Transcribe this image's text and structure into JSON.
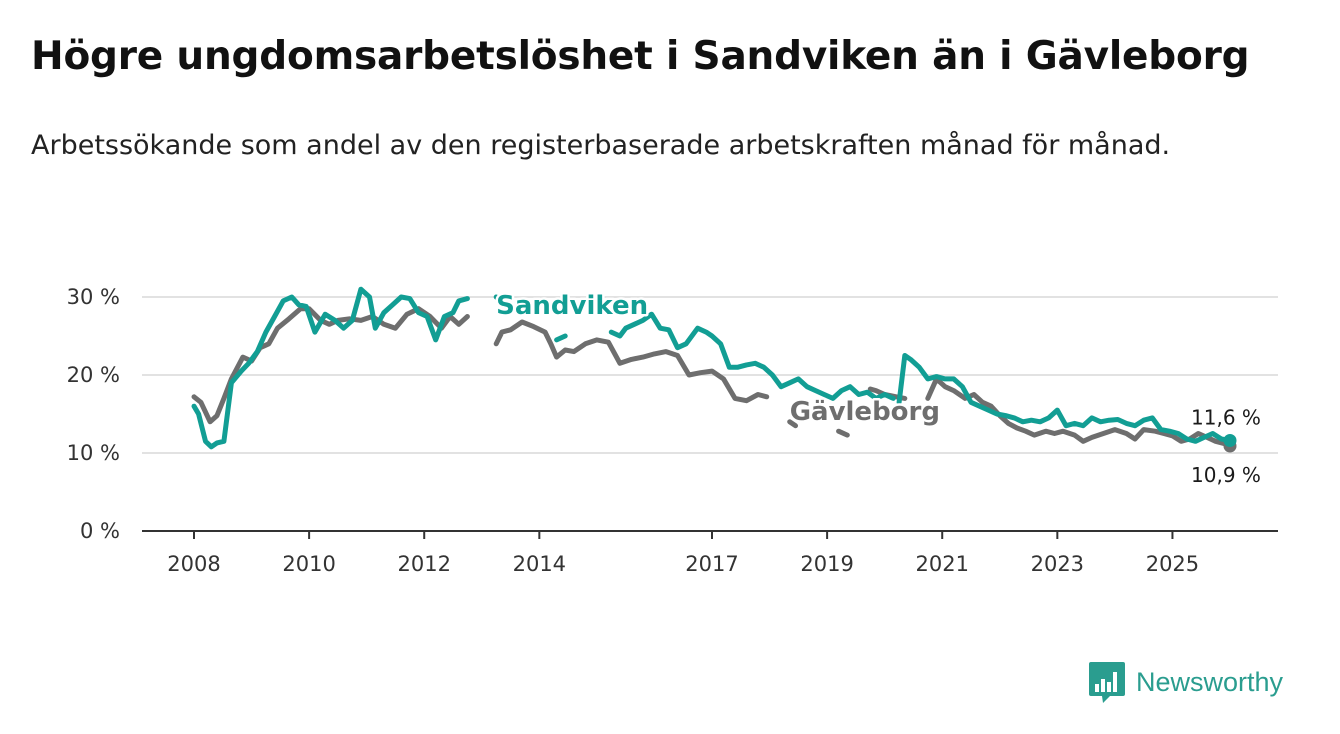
{
  "title": "Högre ungdomsarbetslöshet i Sandviken än i Gävleborg",
  "subtitle": "Arbetssökande som andel av den registerbaserade arbetskraften månad för månad.",
  "brand": {
    "name": "Newsworthy",
    "color": "#2a9d8f"
  },
  "chart_data": {
    "type": "line",
    "title": "Högre ungdomsarbetslöshet i Sandviken än i Gävleborg",
    "xlabel": "",
    "ylabel": "",
    "xlim": [
      2008,
      2026
    ],
    "ylim": [
      0,
      30
    ],
    "y_ticks": [
      0,
      10,
      20,
      30
    ],
    "y_tick_labels": [
      "0 %",
      "10 %",
      "20 %",
      "30 %"
    ],
    "x_ticks": [
      2008,
      2010,
      2012,
      2014,
      2017,
      2019,
      2021,
      2023,
      2025
    ],
    "x_tick_labels": [
      "2008",
      "2010",
      "2012",
      "2014",
      "2017",
      "2019",
      "2021",
      "2023",
      "2025"
    ],
    "grid": true,
    "series": [
      {
        "name": "Gävleborg",
        "color": "#6e6e6e",
        "end_label": "10,9 %",
        "x": [
          2008.0,
          2008.12,
          2008.28,
          2008.4,
          2008.52,
          2008.65,
          2008.85,
          2009.0,
          2009.15,
          2009.3,
          2009.45,
          2009.65,
          2009.85,
          2010.0,
          2010.2,
          2010.35,
          2010.5,
          2010.7,
          2010.9,
          2011.1,
          2011.3,
          2011.5,
          2011.7,
          2011.9,
          2012.1,
          2012.3,
          2012.45,
          2012.6,
          2012.75,
          null,
          2013.25,
          2013.35,
          2013.5,
          2013.7,
          2013.9,
          2014.1,
          2014.2,
          2014.3,
          2014.45,
          2014.6,
          2014.8,
          2015.0,
          2015.2,
          2015.4,
          2015.6,
          2015.8,
          2016.0,
          2016.2,
          2016.4,
          2016.6,
          2016.8,
          2017.0,
          2017.2,
          2017.4,
          2017.6,
          2017.8,
          2017.95,
          null,
          2018.35,
          2018.45,
          null,
          2019.2,
          2019.35,
          null,
          2019.75,
          2019.85,
          2020.0,
          2020.2,
          2020.35,
          null,
          2020.75,
          2020.9,
          2021.05,
          2021.2,
          2021.4,
          2021.55,
          2021.7,
          2021.85,
          2022.0,
          2022.15,
          2022.3,
          2022.45,
          2022.6,
          2022.8,
          2022.95,
          2023.1,
          2023.3,
          2023.45,
          2023.6,
          2023.8,
          2024.0,
          2024.2,
          2024.35,
          2024.5,
          2024.7,
          2024.85,
          2025.0,
          2025.15,
          2025.3,
          2025.45,
          2025.6,
          2025.75,
          2025.9,
          2026.0
        ],
        "y": [
          17.2,
          16.5,
          14.0,
          14.8,
          17.0,
          19.5,
          22.3,
          21.8,
          23.5,
          24.0,
          26.0,
          27.2,
          28.5,
          28.5,
          27.0,
          26.5,
          27.0,
          27.2,
          27.0,
          27.5,
          26.5,
          26.0,
          27.8,
          28.5,
          27.5,
          26.0,
          27.5,
          26.5,
          27.5,
          null,
          24.0,
          25.5,
          25.8,
          26.8,
          26.2,
          25.5,
          24.0,
          22.3,
          23.2,
          23.0,
          24.0,
          24.5,
          24.2,
          21.5,
          22.0,
          22.3,
          22.7,
          23.0,
          22.5,
          20.0,
          20.3,
          20.5,
          19.5,
          17.0,
          16.7,
          17.5,
          17.2,
          null,
          14.0,
          13.5,
          null,
          12.8,
          12.3,
          null,
          18.2,
          18.0,
          17.5,
          17.2,
          17.0,
          null,
          17.0,
          19.5,
          18.5,
          18.0,
          17.0,
          17.5,
          16.5,
          16.0,
          14.8,
          13.8,
          13.2,
          12.8,
          12.3,
          12.8,
          12.5,
          12.8,
          12.3,
          11.5,
          12.0,
          12.5,
          13.0,
          12.5,
          11.8,
          13.0,
          12.8,
          12.5,
          12.2,
          11.5,
          11.8,
          12.5,
          12.0,
          11.5,
          11.2,
          10.9
        ]
      },
      {
        "name": "Sandviken",
        "color": "#129e94",
        "end_label": "11,6 %",
        "x": [
          2008.0,
          2008.08,
          2008.2,
          2008.3,
          2008.4,
          2008.52,
          2008.65,
          2008.82,
          2008.95,
          2009.1,
          2009.25,
          2009.4,
          2009.55,
          2009.7,
          2009.82,
          2009.95,
          2010.1,
          2010.28,
          2010.45,
          2010.6,
          2010.75,
          2010.9,
          2011.05,
          2011.15,
          2011.3,
          2011.45,
          2011.6,
          2011.75,
          2011.9,
          2012.05,
          2012.2,
          2012.35,
          2012.5,
          2012.6,
          2012.75,
          null,
          2013.25,
          2013.35,
          null,
          2014.3,
          2014.45,
          null,
          2015.25,
          2015.4,
          2015.5,
          2015.65,
          2015.8,
          2015.95,
          2016.1,
          2016.25,
          2016.4,
          2016.55,
          2016.75,
          2016.9,
          2017.0,
          2017.15,
          2017.3,
          2017.45,
          2017.6,
          2017.75,
          2017.9,
          2018.05,
          2018.2,
          2018.35,
          2018.5,
          2018.65,
          2018.8,
          2018.95,
          2019.1,
          2019.25,
          2019.4,
          2019.55,
          2019.7,
          2019.85,
          2020.0,
          2020.15,
          null,
          2020.25,
          2020.35,
          2020.45,
          2020.6,
          2020.75,
          2020.9,
          2021.05,
          2021.2,
          2021.35,
          2021.5,
          2021.65,
          2021.8,
          2021.95,
          2022.1,
          2022.25,
          2022.4,
          2022.55,
          2022.7,
          2022.85,
          2023.0,
          2023.15,
          2023.3,
          2023.45,
          2023.6,
          2023.75,
          2023.9,
          2024.05,
          2024.2,
          2024.35,
          2024.5,
          2024.65,
          2024.8,
          2024.95,
          2025.1,
          2025.25,
          2025.4,
          2025.55,
          2025.7,
          2025.85,
          2026.0
        ],
        "y": [
          16.0,
          15.0,
          11.5,
          10.8,
          11.3,
          11.5,
          19.0,
          20.5,
          21.5,
          23.0,
          25.5,
          27.5,
          29.5,
          30.0,
          29.0,
          28.8,
          25.5,
          27.8,
          27.0,
          26.0,
          27.0,
          31.0,
          30.0,
          26.0,
          28.0,
          29.0,
          30.0,
          29.8,
          28.0,
          27.5,
          24.5,
          27.5,
          28.0,
          29.5,
          29.8,
          null,
          30.0,
          29.5,
          null,
          24.5,
          25.0,
          null,
          25.5,
          25.0,
          26.0,
          26.5,
          27.0,
          27.8,
          26.0,
          25.8,
          23.5,
          24.0,
          26.0,
          25.5,
          25.0,
          24.0,
          21.0,
          21.0,
          21.3,
          21.5,
          21.0,
          20.0,
          18.5,
          19.0,
          19.5,
          18.5,
          18.0,
          17.5,
          17.0,
          18.0,
          18.5,
          17.5,
          17.8,
          17.0,
          17.5,
          17.0,
          null,
          16.5,
          22.5,
          22.0,
          21.0,
          19.5,
          19.8,
          19.5,
          19.5,
          18.5,
          16.5,
          16.0,
          15.5,
          15.0,
          14.8,
          14.5,
          14.0,
          14.2,
          14.0,
          14.5,
          15.5,
          13.5,
          13.8,
          13.5,
          14.5,
          14.0,
          14.2,
          14.3,
          13.8,
          13.5,
          14.2,
          14.5,
          13.0,
          12.8,
          12.5,
          11.8,
          11.5,
          12.0,
          12.5,
          11.8,
          11.6
        ]
      }
    ],
    "annotations": [
      {
        "text": "Sandviken",
        "x": 2013.25,
        "y": 27.8,
        "series": "Sandviken"
      },
      {
        "text": "Gävleborg",
        "x": 2018.35,
        "y": 14.2,
        "series": "Gävleborg"
      }
    ]
  }
}
